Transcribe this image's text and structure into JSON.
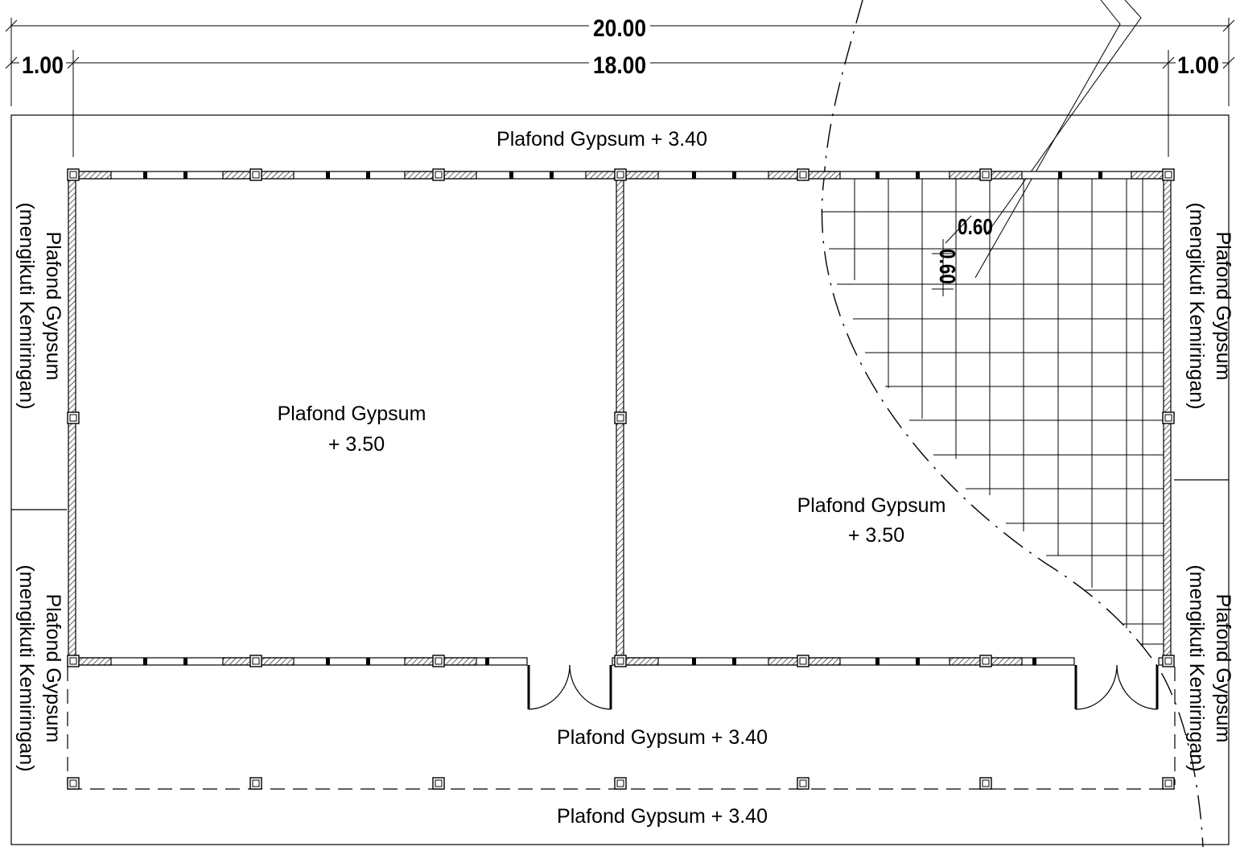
{
  "dimensions": {
    "overall": "20.00",
    "inner": "18.00",
    "left_offset": "1.00",
    "right_offset": "1.00",
    "grid_h": "0.60",
    "grid_v": "0.60"
  },
  "labels": {
    "top": "Plafond Gypsum + 3.40",
    "room_left_line1": "Plafond Gypsum",
    "room_left_line2": "+ 3.50",
    "room_right_line1": "Plafond Gypsum",
    "room_right_line2": "+ 3.50",
    "corridor": "Plafond Gypsum + 3.40",
    "bottom": "Plafond Gypsum + 3.40",
    "side_line1": "Plafond Gypsum",
    "side_line2": "(mengikuti Kemiringan)"
  },
  "colors": {
    "line": "#000000",
    "background": "#ffffff"
  }
}
